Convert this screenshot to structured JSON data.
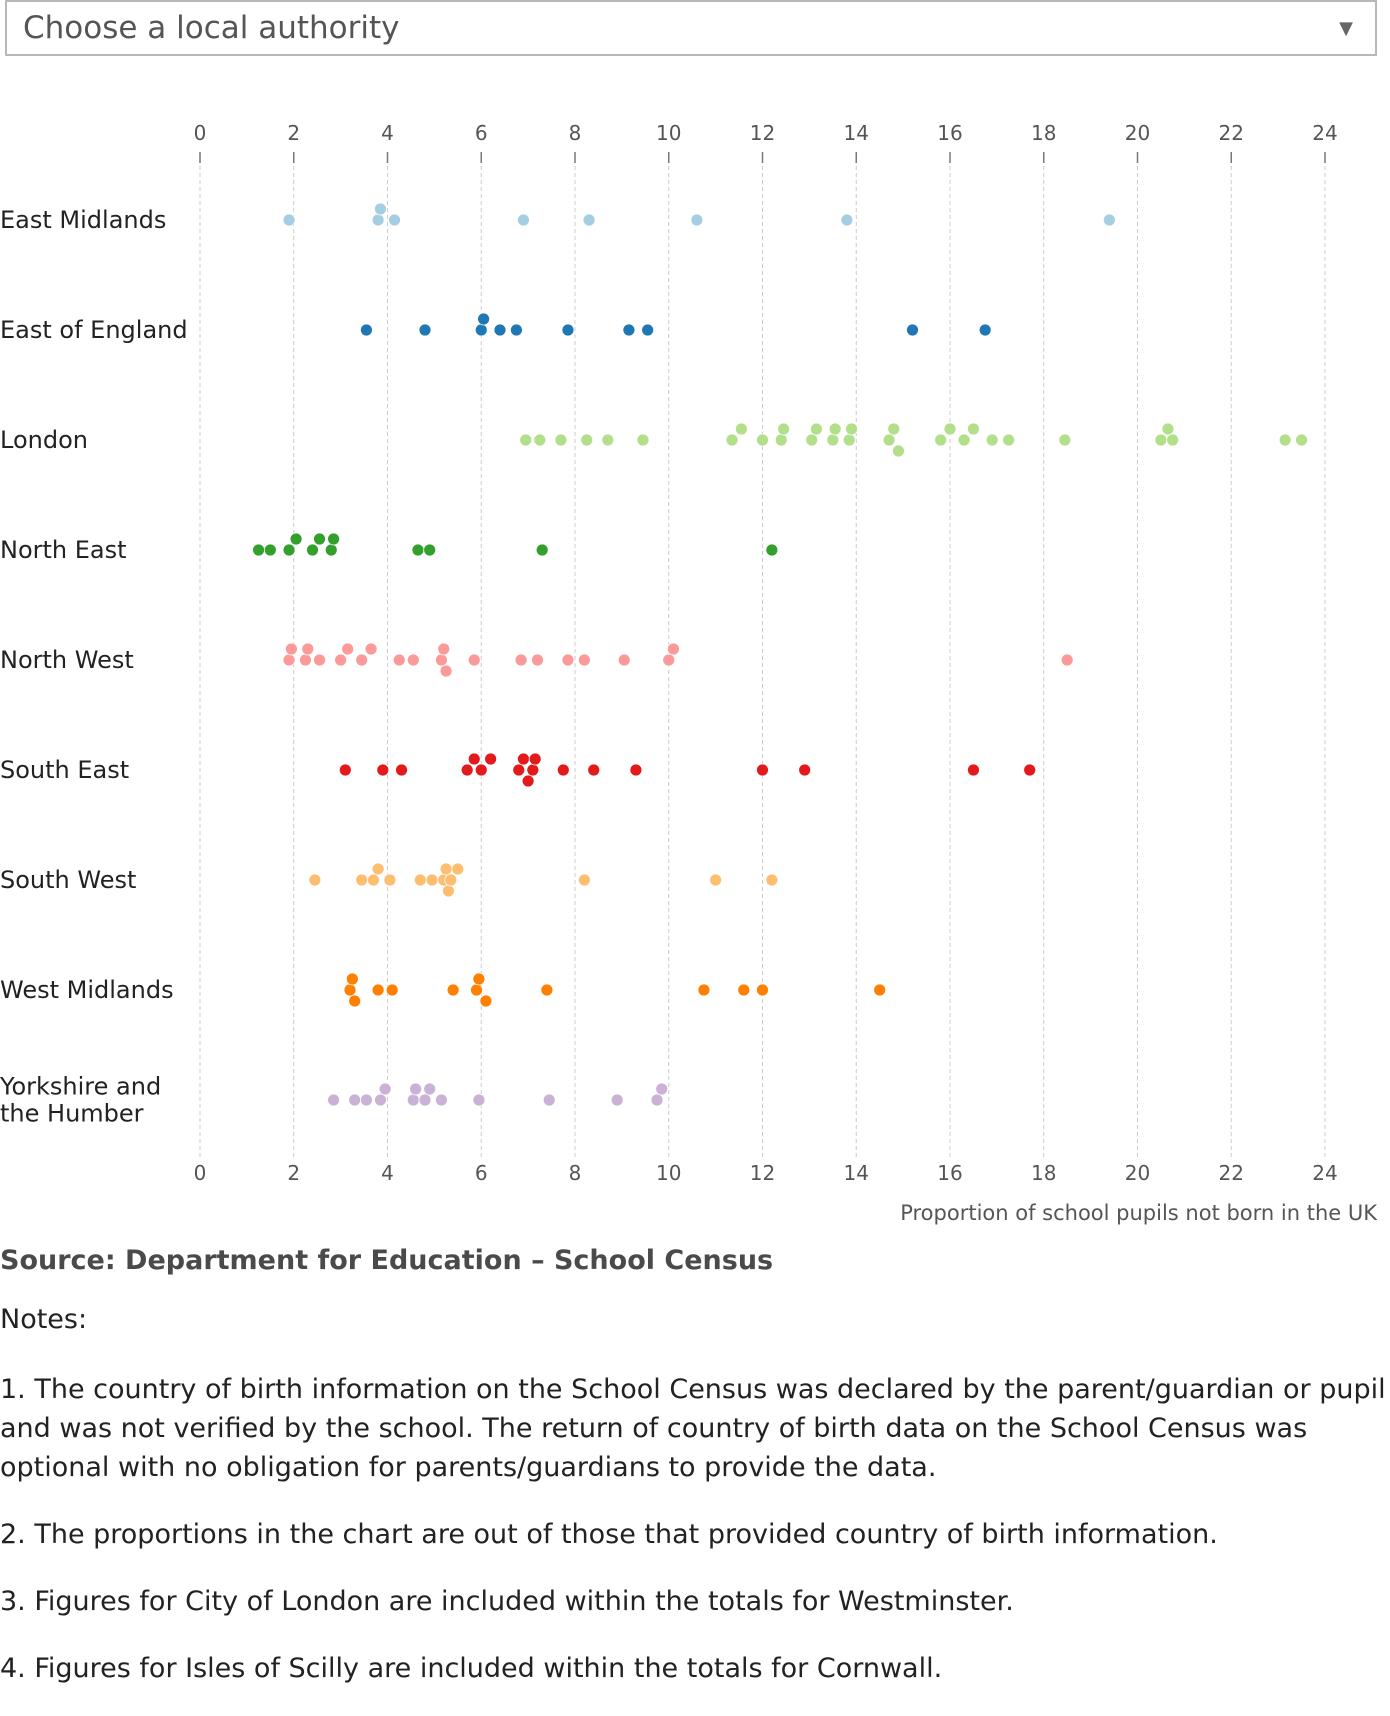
{
  "dropdown": {
    "selected": "Choose a local authority",
    "arrow_icon": "triangle-down-icon"
  },
  "chart_data": {
    "type": "scatter",
    "title": "",
    "xlabel": "Proportion of school pupils not born in the UK",
    "ylabel": "",
    "xlim": [
      0,
      24
    ],
    "xticks": [
      0,
      2,
      4,
      6,
      8,
      10,
      12,
      14,
      16,
      18,
      20,
      22,
      24
    ],
    "grid": true,
    "legend": "none",
    "series": [
      {
        "name": "East Midlands",
        "label_lines": [
          "East Midlands"
        ],
        "color": "#a6cee3",
        "values": [
          1.9,
          3.8,
          3.85,
          4.15,
          6.9,
          8.3,
          10.6,
          13.8,
          19.4
        ]
      },
      {
        "name": "East of England",
        "label_lines": [
          "East of England"
        ],
        "color": "#1f78b4",
        "values": [
          3.55,
          4.8,
          6.0,
          6.05,
          6.4,
          6.75,
          7.85,
          9.15,
          9.55,
          15.2,
          16.75
        ]
      },
      {
        "name": "London",
        "label_lines": [
          "London"
        ],
        "color": "#b2df8a",
        "values": [
          6.95,
          7.25,
          7.7,
          8.25,
          8.7,
          9.45,
          11.35,
          11.55,
          12.0,
          12.4,
          12.45,
          13.05,
          13.15,
          13.5,
          13.55,
          13.85,
          13.9,
          14.7,
          14.8,
          14.9,
          15.8,
          16.0,
          16.3,
          16.5,
          16.9,
          17.25,
          18.45,
          20.5,
          20.65,
          20.75,
          23.15,
          23.5
        ]
      },
      {
        "name": "North East",
        "label_lines": [
          "North East"
        ],
        "color": "#33a02c",
        "values": [
          1.25,
          1.5,
          1.9,
          2.05,
          2.4,
          2.55,
          2.8,
          2.85,
          4.65,
          4.9,
          7.3,
          12.2
        ]
      },
      {
        "name": "North West",
        "label_lines": [
          "North West"
        ],
        "color": "#fb9a99",
        "values": [
          1.9,
          1.95,
          2.25,
          2.3,
          2.55,
          3.0,
          3.15,
          3.45,
          3.65,
          4.25,
          4.55,
          5.15,
          5.2,
          5.25,
          5.85,
          6.85,
          7.2,
          7.85,
          8.2,
          9.05,
          10.0,
          10.1,
          18.5
        ]
      },
      {
        "name": "South East",
        "label_lines": [
          "South East"
        ],
        "color": "#e31a1c",
        "values": [
          3.1,
          3.9,
          4.3,
          5.7,
          5.85,
          6.0,
          6.2,
          6.8,
          6.9,
          7.0,
          7.1,
          7.15,
          7.75,
          8.4,
          9.3,
          12.0,
          12.9,
          16.5,
          17.7
        ]
      },
      {
        "name": "South West",
        "label_lines": [
          "South West"
        ],
        "color": "#fdbf6f",
        "values": [
          2.45,
          3.45,
          3.7,
          3.8,
          4.05,
          4.7,
          4.95,
          5.2,
          5.25,
          5.3,
          5.35,
          5.5,
          8.2,
          11.0,
          12.2
        ]
      },
      {
        "name": "West Midlands",
        "label_lines": [
          "West Midlands"
        ],
        "color": "#ff7f00",
        "values": [
          3.2,
          3.25,
          3.3,
          3.8,
          4.1,
          5.4,
          5.9,
          5.95,
          6.1,
          7.4,
          10.75,
          11.6,
          12.0,
          14.5
        ]
      },
      {
        "name": "Yorkshire and the Humber",
        "label_lines": [
          "Yorkshire and",
          "the Humber"
        ],
        "color": "#cab2d6",
        "values": [
          2.85,
          3.3,
          3.55,
          3.85,
          3.95,
          4.55,
          4.6,
          4.8,
          4.9,
          5.15,
          5.95,
          7.45,
          8.9,
          9.75,
          9.85
        ]
      }
    ]
  },
  "source": "Source: Department for Education – School Census",
  "notes_heading": "Notes:",
  "notes": [
    "1. The country of birth information on the School Census was declared by the parent/guardian or pupil and was not verified by the school. The return of country of birth data on the School Census was optional with no obligation for parents/guardians to provide the data.",
    "2. The proportions in the chart are out of those that provided country of birth information.",
    "3. Figures for City of London are included within the totals for Westminster.",
    "4. Figures for Isles of Scilly are included within the totals for Cornwall."
  ]
}
